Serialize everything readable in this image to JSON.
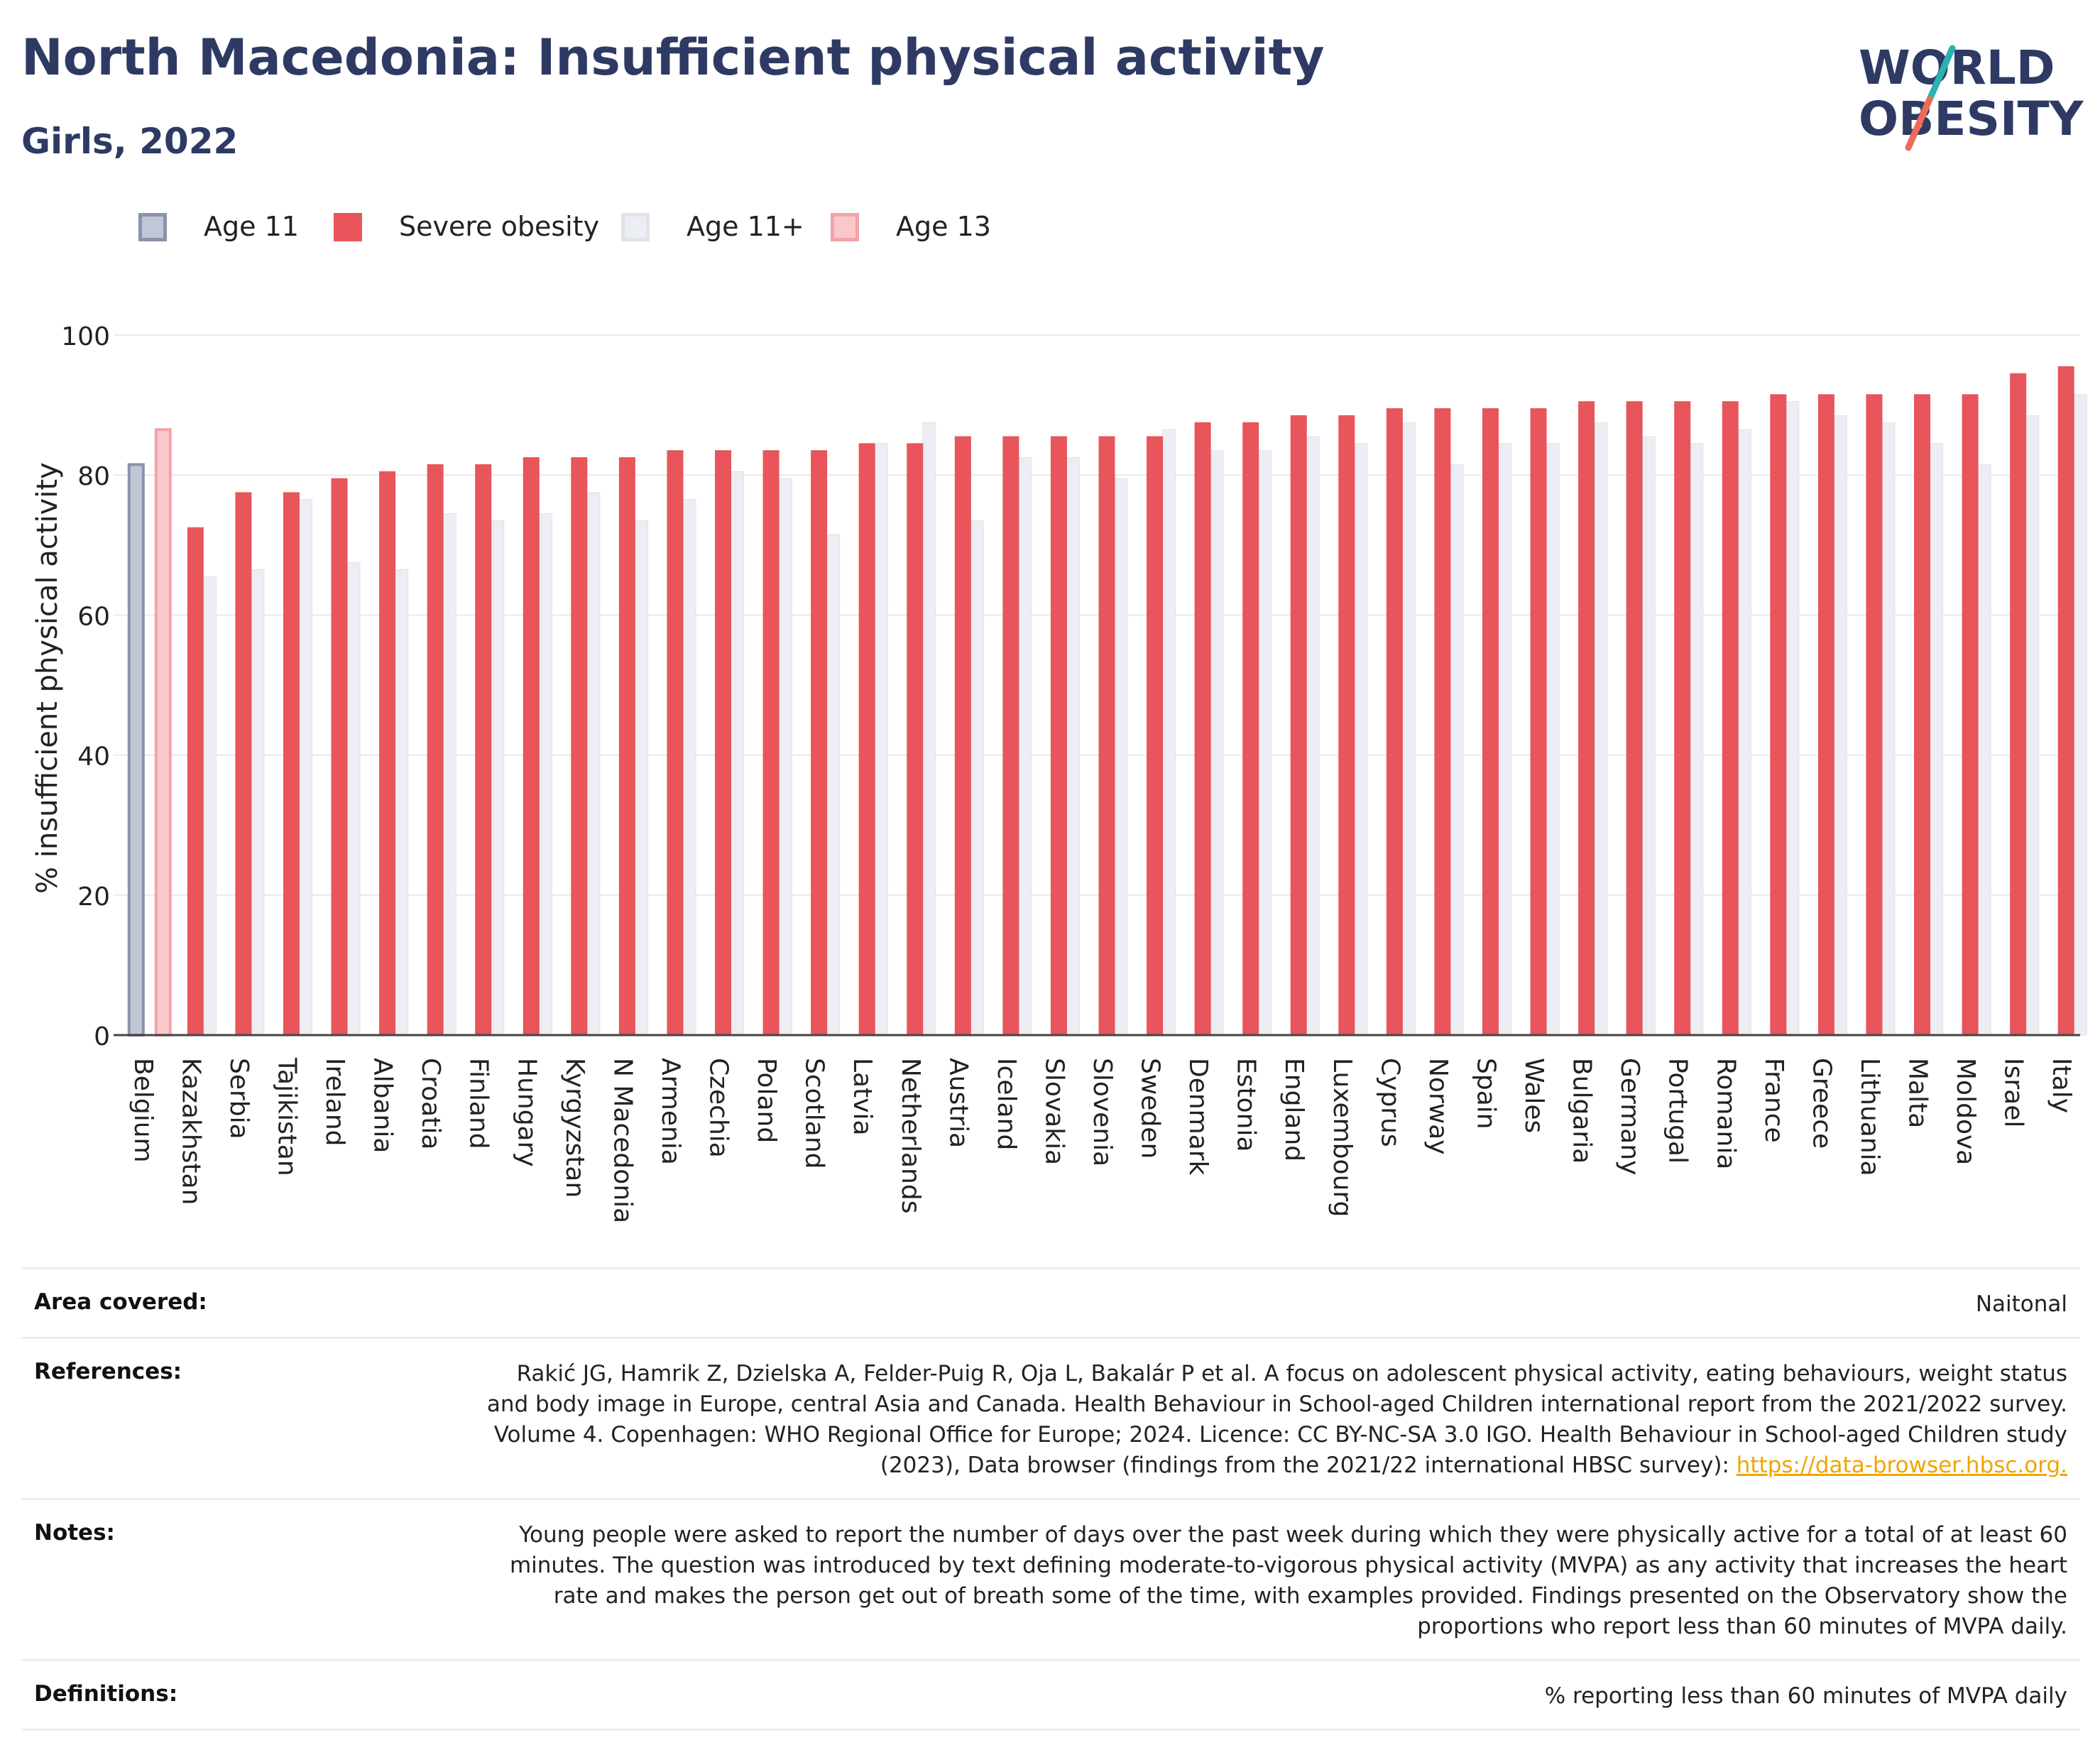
{
  "header": {
    "title": "North Macedonia: Insufficient physical activity",
    "subtitle": "Girls, 2022",
    "logo_line1": "WORLD",
    "logo_line2": "OBESITY"
  },
  "colors": {
    "age11": "#8a93ae",
    "severe": "#e8555a",
    "age11plus": "#e3e5ee",
    "age13": "#f3a3a8",
    "title": "#2e3a63",
    "logo_teal": "#2bb3b1",
    "logo_coral": "#ee6b57"
  },
  "legend": [
    {
      "label": "Age 11",
      "key": "age11"
    },
    {
      "label": "Severe obesity",
      "key": "severe"
    },
    {
      "label": "Age 11+",
      "key": "age11plus"
    },
    {
      "label": "Age 13",
      "key": "age13"
    }
  ],
  "chart_data": {
    "type": "bar",
    "ylabel": "% insufficient physical activity",
    "ylim": [
      0,
      100
    ],
    "yticks": [
      0,
      20,
      40,
      60,
      80,
      100
    ],
    "categories": [
      "Belgium",
      "Kazakhstan",
      "Serbia",
      "Tajikistan",
      "Ireland",
      "Albania",
      "Croatia",
      "Finland",
      "Hungary",
      "Kyrgyzstan",
      "N Macedonia",
      "Armenia",
      "Czechia",
      "Poland",
      "Scotland",
      "Latvia",
      "Netherlands",
      "Austria",
      "Iceland",
      "Slovakia",
      "Slovenia",
      "Sweden",
      "Denmark",
      "Estonia",
      "England",
      "Luxembourg",
      "Cyprus",
      "Norway",
      "Spain",
      "Wales",
      "Bulgaria",
      "Germany",
      "Portugal",
      "Romania",
      "France",
      "Greece",
      "Lithuania",
      "Malta",
      "Moldova",
      "Israel",
      "Italy"
    ],
    "series": [
      {
        "name": "Severe obesity",
        "key": "severe",
        "values": [
          null,
          72.5,
          77.5,
          77.5,
          79.5,
          80.5,
          81.5,
          81.5,
          82.5,
          82.5,
          82.5,
          83.5,
          83.5,
          83.5,
          83.5,
          84.5,
          84.5,
          85.5,
          85.5,
          85.5,
          85.5,
          85.5,
          87.5,
          87.5,
          88.5,
          88.5,
          89.5,
          89.5,
          89.5,
          89.5,
          90.5,
          90.5,
          90.5,
          90.5,
          91.5,
          91.5,
          91.5,
          91.5,
          91.5,
          94.5,
          95.5
        ]
      },
      {
        "name": "Age 11+",
        "key": "age11plus",
        "values": [
          null,
          65.5,
          66.5,
          76.5,
          67.5,
          66.5,
          74.5,
          73.5,
          74.5,
          77.5,
          73.5,
          76.5,
          80.5,
          79.5,
          71.5,
          84.5,
          87.5,
          73.5,
          82.5,
          82.5,
          79.5,
          86.5,
          83.5,
          83.5,
          85.5,
          84.5,
          87.5,
          81.5,
          84.5,
          84.5,
          87.5,
          85.5,
          84.5,
          86.5,
          90.5,
          88.5,
          87.5,
          84.5,
          81.5,
          88.5,
          91.5
        ]
      },
      {
        "name": "Age 11",
        "key": "age11",
        "values": [
          81.5,
          null,
          null,
          null,
          null,
          null,
          null,
          null,
          null,
          null,
          null,
          null,
          null,
          null,
          null,
          null,
          null,
          null,
          null,
          null,
          null,
          null,
          null,
          null,
          null,
          null,
          null,
          null,
          null,
          null,
          null,
          null,
          null,
          null,
          null,
          null,
          null,
          null,
          null,
          null,
          null
        ]
      },
      {
        "name": "Age 13",
        "key": "age13",
        "values": [
          86.5,
          null,
          null,
          null,
          null,
          null,
          null,
          null,
          null,
          null,
          null,
          null,
          null,
          null,
          null,
          null,
          null,
          null,
          null,
          null,
          null,
          null,
          null,
          null,
          null,
          null,
          null,
          null,
          null,
          null,
          null,
          null,
          null,
          null,
          null,
          null,
          null,
          null,
          null,
          null,
          null
        ]
      }
    ]
  },
  "info": {
    "area_label": "Area covered:",
    "area_value": "Naitonal",
    "references_label": "References:",
    "references_text": "Rakić JG, Hamrik Z, Dzielska A, Felder-Puig R, Oja L, Bakalár P et al. A focus on adolescent physical activity, eating behaviours, weight status and body image in Europe, central Asia and Canada. Health Behaviour in School-aged Children international report from the 2021/2022 survey. Volume 4. Copenhagen: WHO Regional Office for Europe; 2024. Licence: CC BY-NC-SA 3.0 IGO. Health Behaviour in School-aged Children study (2023), Data browser (findings from the 2021/22 international HBSC survey): ",
    "references_link": "https://data-browser.hbsc.org.",
    "notes_label": "Notes:",
    "notes_text": "Young people were asked to report the number of days over the past week during which they were physically active for a total of at least 60 minutes. The question was introduced by text defining moderate-to-vigorous physical activity (MVPA) as any activity that increases the heart rate and makes the person get out of breath some of the time, with examples provided. Findings presented on the Observatory show the proportions who report less than 60 minutes of MVPA daily.",
    "definitions_label": "Definitions:",
    "definitions_value": "% reporting less than 60 minutes of MVPA daily"
  }
}
